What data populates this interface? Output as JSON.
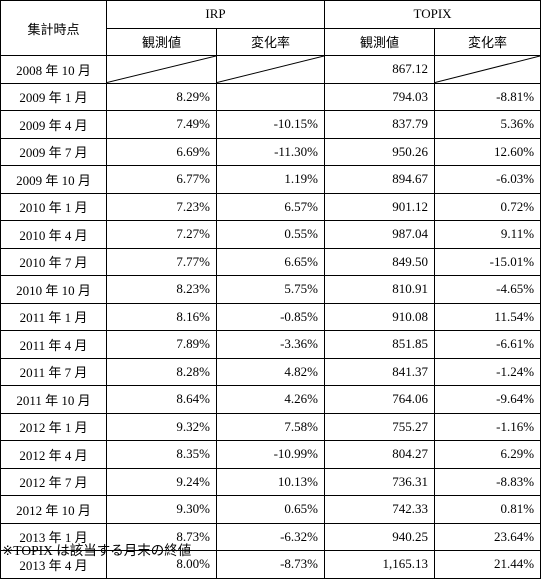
{
  "header": {
    "period": "集計時点",
    "group1": "IRP",
    "group2": "TOPIX",
    "observed": "観測値",
    "change": "変化率"
  },
  "rows": [
    {
      "date": "2008 年 10 月",
      "irp_val": "",
      "irp_chg": "",
      "topix_val": "867.12",
      "topix_chg": ""
    },
    {
      "date": "2009 年 1 月",
      "irp_val": "8.29%",
      "irp_chg": "",
      "topix_val": "794.03",
      "topix_chg": "-8.81%"
    },
    {
      "date": "2009 年 4 月",
      "irp_val": "7.49%",
      "irp_chg": "-10.15%",
      "topix_val": "837.79",
      "topix_chg": "5.36%"
    },
    {
      "date": "2009 年 7 月",
      "irp_val": "6.69%",
      "irp_chg": "-11.30%",
      "topix_val": "950.26",
      "topix_chg": "12.60%"
    },
    {
      "date": "2009 年 10 月",
      "irp_val": "6.77%",
      "irp_chg": "1.19%",
      "topix_val": "894.67",
      "topix_chg": "-6.03%"
    },
    {
      "date": "2010 年 1 月",
      "irp_val": "7.23%",
      "irp_chg": "6.57%",
      "topix_val": "901.12",
      "topix_chg": "0.72%"
    },
    {
      "date": "2010 年 4 月",
      "irp_val": "7.27%",
      "irp_chg": "0.55%",
      "topix_val": "987.04",
      "topix_chg": "9.11%"
    },
    {
      "date": "2010 年 7 月",
      "irp_val": "7.77%",
      "irp_chg": "6.65%",
      "topix_val": "849.50",
      "topix_chg": "-15.01%"
    },
    {
      "date": "2010 年 10 月",
      "irp_val": "8.23%",
      "irp_chg": "5.75%",
      "topix_val": "810.91",
      "topix_chg": "-4.65%"
    },
    {
      "date": "2011 年 1 月",
      "irp_val": "8.16%",
      "irp_chg": "-0.85%",
      "topix_val": "910.08",
      "topix_chg": "11.54%"
    },
    {
      "date": "2011 年 4 月",
      "irp_val": "7.89%",
      "irp_chg": "-3.36%",
      "topix_val": "851.85",
      "topix_chg": "-6.61%"
    },
    {
      "date": "2011 年 7 月",
      "irp_val": "8.28%",
      "irp_chg": "4.82%",
      "topix_val": "841.37",
      "topix_chg": "-1.24%"
    },
    {
      "date": "2011 年 10 月",
      "irp_val": "8.64%",
      "irp_chg": "4.26%",
      "topix_val": "764.06",
      "topix_chg": "-9.64%"
    },
    {
      "date": "2012 年 1 月",
      "irp_val": "9.32%",
      "irp_chg": "7.58%",
      "topix_val": "755.27",
      "topix_chg": "-1.16%"
    },
    {
      "date": "2012 年 4 月",
      "irp_val": "8.35%",
      "irp_chg": "-10.99%",
      "topix_val": "804.27",
      "topix_chg": "6.29%"
    },
    {
      "date": "2012 年 7 月",
      "irp_val": "9.24%",
      "irp_chg": "10.13%",
      "topix_val": "736.31",
      "topix_chg": "-8.83%"
    },
    {
      "date": "2012 年 10 月",
      "irp_val": "9.30%",
      "irp_chg": "0.65%",
      "topix_val": "742.33",
      "topix_chg": "0.81%"
    },
    {
      "date": "2013 年 1 月",
      "irp_val": "8.73%",
      "irp_chg": "-6.32%",
      "topix_val": "940.25",
      "topix_chg": "23.64%"
    },
    {
      "date": "2013 年 4 月",
      "irp_val": "8.00%",
      "irp_chg": "-8.73%",
      "topix_val": "1,165.13",
      "topix_chg": "21.44%"
    }
  ],
  "note": "※TOPIX は該当する月末の終値"
}
